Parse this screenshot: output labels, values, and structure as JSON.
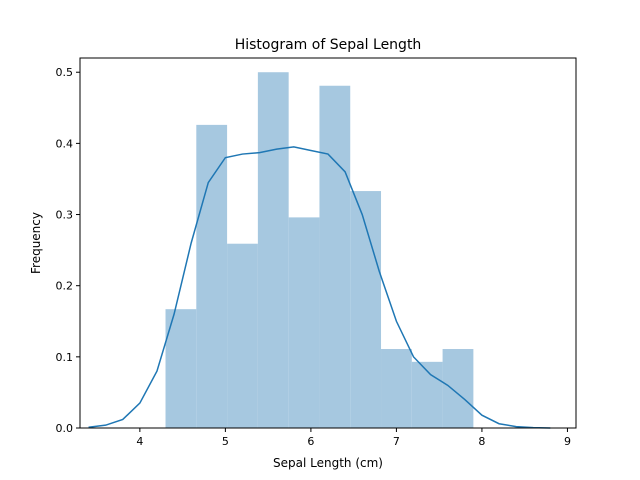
{
  "chart_data": {
    "type": "histogram",
    "title": "Histogram of Sepal Length",
    "xlabel": "Sepal Length (cm)",
    "ylabel": "Frequency",
    "xlim": [
      3.3,
      9.1
    ],
    "ylim": [
      0,
      0.52
    ],
    "xticks": [
      4,
      5,
      6,
      7,
      8,
      9
    ],
    "yticks": [
      0.0,
      0.1,
      0.2,
      0.3,
      0.4,
      0.5
    ],
    "xtick_labels": [
      "4",
      "5",
      "6",
      "7",
      "8",
      "9"
    ],
    "ytick_labels": [
      "0.0",
      "0.1",
      "0.2",
      "0.3",
      "0.4",
      "0.5"
    ],
    "grid": false,
    "bar_color": "#a6c8e0",
    "kde_color": "#1f77b4",
    "bins": [
      {
        "x0": 4.3,
        "x1": 4.66,
        "density": 0.167
      },
      {
        "x0": 4.66,
        "x1": 5.02,
        "density": 0.426
      },
      {
        "x0": 5.02,
        "x1": 5.38,
        "density": 0.259
      },
      {
        "x0": 5.38,
        "x1": 5.74,
        "density": 0.5
      },
      {
        "x0": 5.74,
        "x1": 6.1,
        "density": 0.296
      },
      {
        "x0": 6.1,
        "x1": 6.46,
        "density": 0.481
      },
      {
        "x0": 6.46,
        "x1": 6.82,
        "density": 0.333
      },
      {
        "x0": 6.82,
        "x1": 7.18,
        "density": 0.111
      },
      {
        "x0": 7.18,
        "x1": 7.54,
        "density": 0.093
      },
      {
        "x0": 7.54,
        "x1": 7.9,
        "density": 0.111
      }
    ],
    "kde": {
      "x": [
        3.4,
        3.6,
        3.8,
        4.0,
        4.2,
        4.4,
        4.6,
        4.8,
        5.0,
        5.2,
        5.4,
        5.6,
        5.8,
        6.0,
        6.2,
        6.4,
        6.6,
        6.8,
        7.0,
        7.2,
        7.4,
        7.6,
        7.8,
        8.0,
        8.2,
        8.4,
        8.6,
        8.8
      ],
      "y": [
        0.001,
        0.004,
        0.012,
        0.035,
        0.08,
        0.16,
        0.26,
        0.345,
        0.38,
        0.385,
        0.387,
        0.392,
        0.395,
        0.39,
        0.385,
        0.36,
        0.3,
        0.22,
        0.15,
        0.1,
        0.075,
        0.06,
        0.04,
        0.018,
        0.006,
        0.002,
        0.0005,
        0.0
      ]
    }
  }
}
